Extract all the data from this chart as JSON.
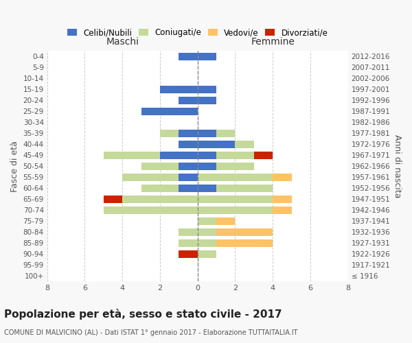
{
  "age_groups": [
    "100+",
    "95-99",
    "90-94",
    "85-89",
    "80-84",
    "75-79",
    "70-74",
    "65-69",
    "60-64",
    "55-59",
    "50-54",
    "45-49",
    "40-44",
    "35-39",
    "30-34",
    "25-29",
    "20-24",
    "15-19",
    "10-14",
    "5-9",
    "0-4"
  ],
  "birth_years": [
    "≤ 1916",
    "1917-1921",
    "1922-1926",
    "1927-1931",
    "1932-1936",
    "1937-1941",
    "1942-1946",
    "1947-1951",
    "1952-1956",
    "1957-1961",
    "1962-1966",
    "1967-1971",
    "1972-1976",
    "1977-1981",
    "1982-1986",
    "1987-1991",
    "1992-1996",
    "1997-2001",
    "2002-2006",
    "2007-2011",
    "2012-2016"
  ],
  "male": {
    "celibi": [
      0,
      0,
      0,
      0,
      0,
      0,
      0,
      0,
      1,
      1,
      1,
      2,
      1,
      1,
      0,
      3,
      1,
      2,
      0,
      0,
      1
    ],
    "coniugati": [
      0,
      0,
      0,
      1,
      1,
      0,
      5,
      4,
      2,
      3,
      2,
      3,
      0,
      1,
      0,
      0,
      0,
      0,
      0,
      0,
      0
    ],
    "vedovi": [
      0,
      0,
      0,
      0,
      0,
      0,
      0,
      0,
      0,
      0,
      0,
      0,
      0,
      0,
      0,
      0,
      0,
      0,
      0,
      0,
      0
    ],
    "divorziati": [
      0,
      0,
      1,
      0,
      0,
      0,
      0,
      1,
      0,
      0,
      0,
      0,
      0,
      0,
      0,
      0,
      0,
      0,
      0,
      0,
      0
    ]
  },
  "female": {
    "nubili": [
      0,
      0,
      0,
      0,
      0,
      0,
      0,
      0,
      1,
      0,
      1,
      1,
      2,
      1,
      0,
      0,
      1,
      1,
      0,
      0,
      1
    ],
    "coniugate": [
      0,
      0,
      1,
      1,
      1,
      1,
      4,
      4,
      3,
      4,
      2,
      2,
      1,
      1,
      0,
      0,
      0,
      0,
      0,
      0,
      0
    ],
    "vedove": [
      0,
      0,
      0,
      3,
      3,
      1,
      1,
      1,
      0,
      1,
      0,
      0,
      0,
      0,
      0,
      0,
      0,
      0,
      0,
      0,
      0
    ],
    "divorziate": [
      0,
      0,
      0,
      0,
      0,
      0,
      0,
      0,
      0,
      0,
      0,
      1,
      0,
      0,
      0,
      0,
      0,
      0,
      0,
      0,
      0
    ]
  },
  "colors": {
    "celibi": "#4472c4",
    "coniugati": "#c5d99b",
    "vedovi": "#ffc266",
    "divorziati": "#cc2200"
  },
  "title": "Popolazione per età, sesso e stato civile - 2017",
  "subtitle": "COMUNE DI MALVICINO (AL) - Dati ISTAT 1° gennaio 2017 - Elaborazione TUTTAITALIA.IT",
  "xlabel_left": "Maschi",
  "xlabel_right": "Femmine",
  "ylabel_left": "Fasce di età",
  "ylabel_right": "Anni di nascita",
  "xlim": 8,
  "legend_labels": [
    "Celibi/Nubili",
    "Coniugati/e",
    "Vedovi/e",
    "Divorziati/e"
  ],
  "bg_color": "#f8f8f8",
  "plot_bg": "#ffffff"
}
